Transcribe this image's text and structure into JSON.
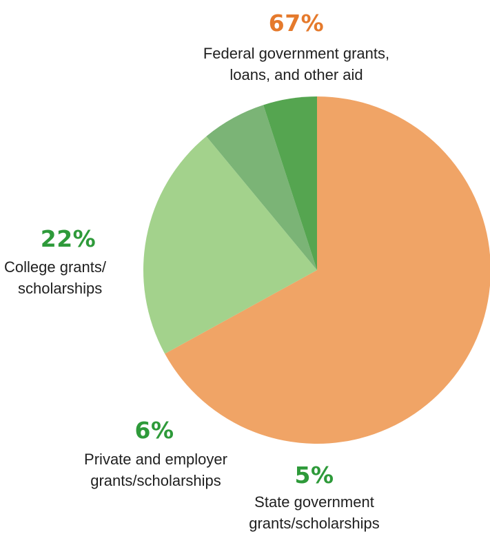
{
  "chart_data": {
    "type": "pie",
    "title": "",
    "slices": [
      {
        "label": "Federal government grants, loans, and other aid",
        "label_lines": [
          "Federal government grants,",
          "loans, and other aid"
        ],
        "value": 67,
        "display": "67%",
        "color": "#f0a466",
        "label_color": "#e57a2c"
      },
      {
        "label": "College grants/ scholarships",
        "label_lines": [
          "College grants/",
          "scholarships"
        ],
        "value": 22,
        "display": "22%",
        "color": "#a3d28c",
        "label_color": "#2e9a3a"
      },
      {
        "label": "Private and employer grants/scholarships",
        "label_lines": [
          "Private and employer",
          "grants/scholarships"
        ],
        "value": 6,
        "display": "6%",
        "color": "#7bb476",
        "label_color": "#2e9a3a"
      },
      {
        "label": "State government grants/scholarships",
        "label_lines": [
          "State government",
          "grants/scholarships"
        ],
        "value": 5,
        "display": "5%",
        "color": "#55a550",
        "label_color": "#2e9a3a"
      }
    ]
  }
}
